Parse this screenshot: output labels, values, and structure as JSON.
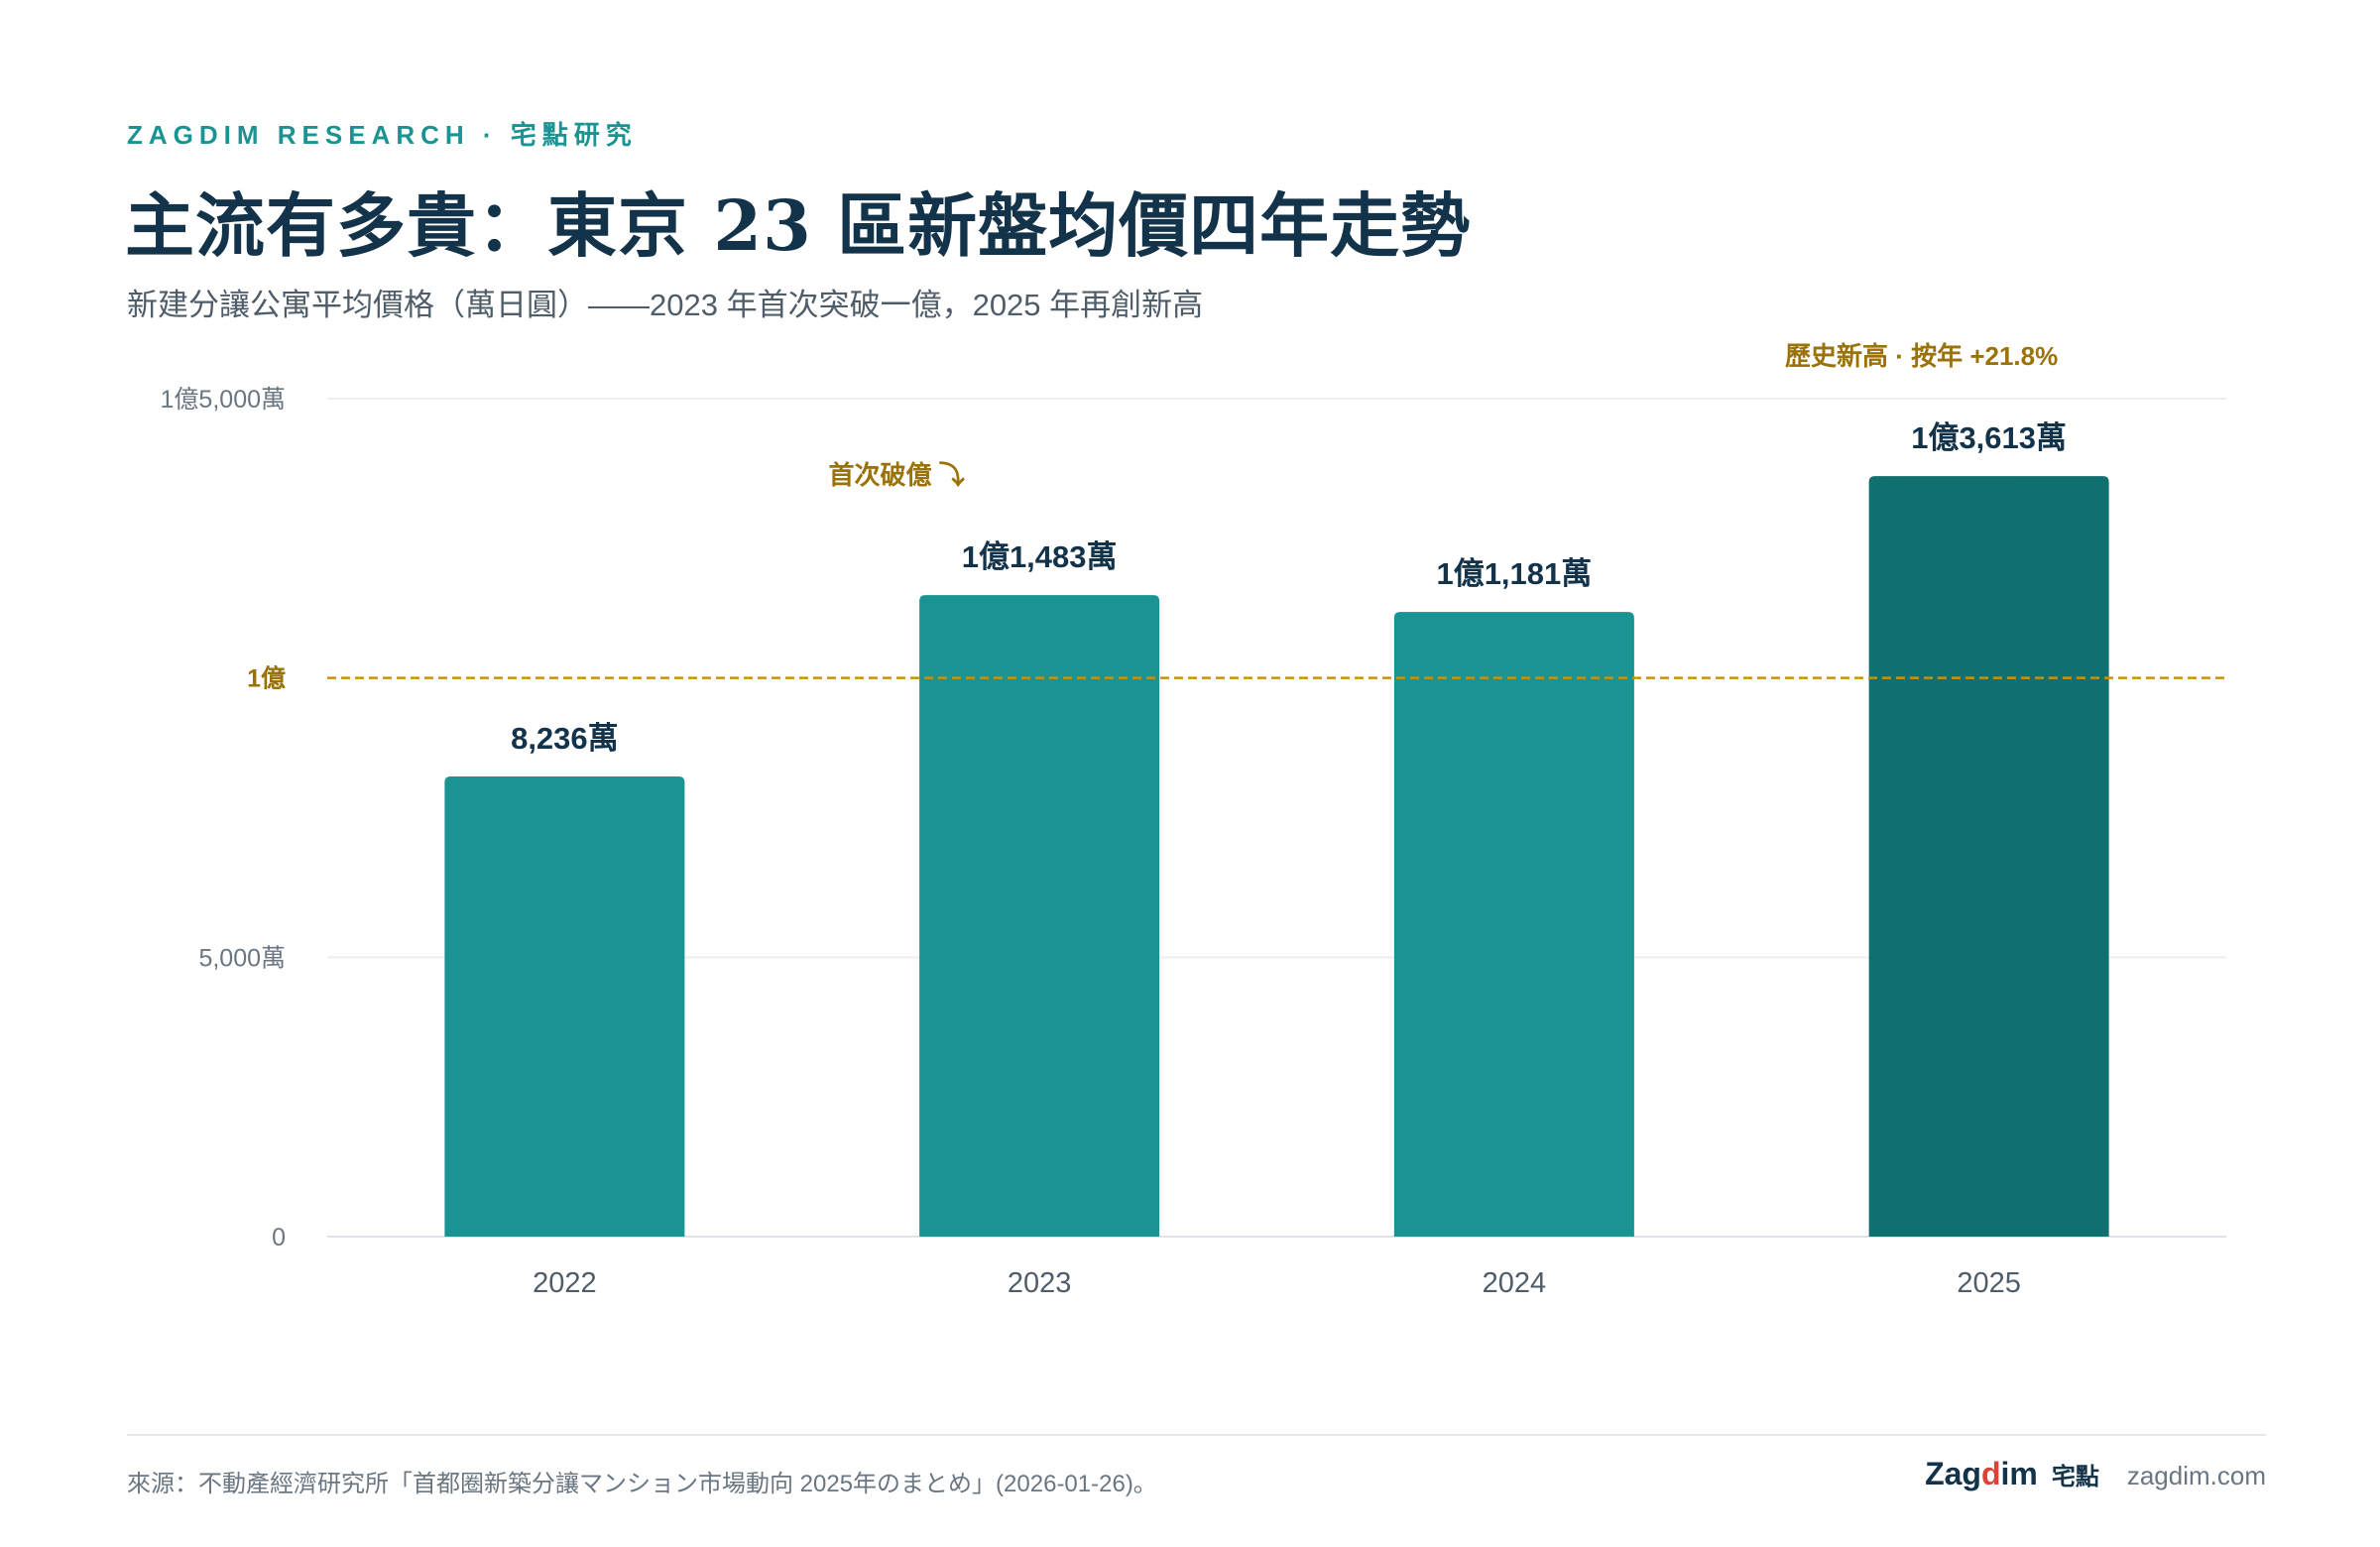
{
  "header": {
    "kicker": "ZAGDIM RESEARCH · 宅點研究",
    "title": "主流有多貴：東京 23 區新盤均價四年走勢",
    "subtitle": "新建分讓公寓平均價格（萬日圓）——2023 年首次突破一億，2025 年再創新高"
  },
  "chart_data": {
    "type": "bar",
    "title": "主流有多貴：東京 23 區新盤均價四年走勢",
    "subtitle": "新建分讓公寓平均價格（萬日圓）——2023 年首次突破一億，2025 年再創新高",
    "unit": "萬日圓",
    "categories": [
      "2022",
      "2023",
      "2024",
      "2025"
    ],
    "values": [
      8236,
      11483,
      11181,
      13613
    ],
    "data_labels": [
      "8,236萬",
      "1億1,483萬",
      "1億1,181萬",
      "1億3,613萬"
    ],
    "ylim": [
      0,
      15000
    ],
    "y_ticks": [
      {
        "value": 0,
        "label": "0"
      },
      {
        "value": 5000,
        "label": "5,000萬"
      },
      {
        "value": 15000,
        "label": "1億5,000萬"
      }
    ],
    "reference_line": {
      "value": 10000,
      "label": "1億",
      "color": "#c9900c",
      "style": "dashed"
    },
    "annotations": [
      {
        "category": "2023",
        "text": "首次破億 ⤵"
      },
      {
        "category": "2025",
        "text": "歷史新高 · 按年 +21.8%"
      }
    ],
    "highlight_category": "2025",
    "grid": true,
    "colors": {
      "bar": "#1a9393",
      "highlight": "#106f6f",
      "label": "#13334a",
      "annotation": "#9a7207",
      "axis_text": "#6a7681"
    }
  },
  "footer": {
    "source": "來源：不動產經濟研究所「首都圈新築分讓マンション市場動向 2025年のまとめ」(2026-01-26)。",
    "logo_pre": "Zag",
    "logo_accent": "d",
    "logo_post": "im",
    "logo_cn": "宅點",
    "url": "zagdim.com"
  }
}
